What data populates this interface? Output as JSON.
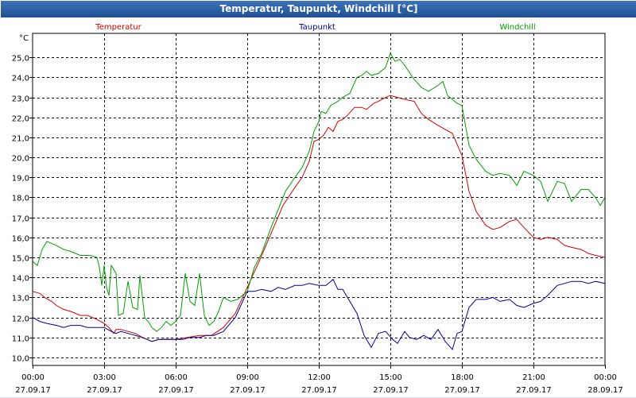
{
  "window": {
    "title": "Temperatur, Taupunkt, Windchill [°C]"
  },
  "chart_data": {
    "type": "line",
    "title": "Temperatur, Taupunkt, Windchill [°C]",
    "ylabel": "°C",
    "ylim": [
      9.6,
      26.2
    ],
    "yticks": [
      "10,0",
      "11,0",
      "12,0",
      "13,0",
      "14,0",
      "15,0",
      "16,0",
      "17,0",
      "18,0",
      "19,0",
      "20,0",
      "21,0",
      "22,0",
      "23,0",
      "24,0",
      "25,0"
    ],
    "ytick_values": [
      10,
      11,
      12,
      13,
      14,
      15,
      16,
      17,
      18,
      19,
      20,
      21,
      22,
      23,
      24,
      25
    ],
    "xlim": [
      0,
      24
    ],
    "xticks": [
      {
        "time": "00:00",
        "date": "27.09.17"
      },
      {
        "time": "03:00",
        "date": "27.09.17"
      },
      {
        "time": "06:00",
        "date": "27.09.17"
      },
      {
        "time": "09:00",
        "date": "27.09.17"
      },
      {
        "time": "12:00",
        "date": "27.09.17"
      },
      {
        "time": "15:00",
        "date": "27.09.17"
      },
      {
        "time": "18:00",
        "date": "27.09.17"
      },
      {
        "time": "21:00",
        "date": "27.09.17"
      },
      {
        "time": "00:00",
        "date": "28.09.17"
      }
    ],
    "grid": true,
    "legend_position": "top",
    "series": [
      {
        "name": "Temperatur",
        "color": "#d40000",
        "points": [
          [
            0,
            13.3
          ],
          [
            0.3,
            13.2
          ],
          [
            0.5,
            13.0
          ],
          [
            0.8,
            12.8
          ],
          [
            1.0,
            12.6
          ],
          [
            1.3,
            12.4
          ],
          [
            1.6,
            12.3
          ],
          [
            2.0,
            12.1
          ],
          [
            2.3,
            12.1
          ],
          [
            2.7,
            11.9
          ],
          [
            3.0,
            11.7
          ],
          [
            3.2,
            11.5
          ],
          [
            3.4,
            11.2
          ],
          [
            3.5,
            11.4
          ],
          [
            3.7,
            11.4
          ],
          [
            4.0,
            11.3
          ],
          [
            4.3,
            11.2
          ],
          [
            4.6,
            11.0
          ],
          [
            5.0,
            10.8
          ],
          [
            5.3,
            10.9
          ],
          [
            5.6,
            10.9
          ],
          [
            6.0,
            10.9
          ],
          [
            6.5,
            11.0
          ],
          [
            7.0,
            11.1
          ],
          [
            7.5,
            11.1
          ],
          [
            8.0,
            11.5
          ],
          [
            8.5,
            12.2
          ],
          [
            9.0,
            13.5
          ],
          [
            9.5,
            14.8
          ],
          [
            10.0,
            16.2
          ],
          [
            10.5,
            17.6
          ],
          [
            11.0,
            18.5
          ],
          [
            11.3,
            19.0
          ],
          [
            11.6,
            19.8
          ],
          [
            11.8,
            20.8
          ],
          [
            12.0,
            20.9
          ],
          [
            12.2,
            21.1
          ],
          [
            12.4,
            21.5
          ],
          [
            12.6,
            21.3
          ],
          [
            12.8,
            21.8
          ],
          [
            13.0,
            21.9
          ],
          [
            13.2,
            22.1
          ],
          [
            13.5,
            22.5
          ],
          [
            13.8,
            22.5
          ],
          [
            14.0,
            22.4
          ],
          [
            14.3,
            22.7
          ],
          [
            14.5,
            22.8
          ],
          [
            14.8,
            23.0
          ],
          [
            15.0,
            23.1
          ],
          [
            15.3,
            23.0
          ],
          [
            15.6,
            22.9
          ],
          [
            16.0,
            22.8
          ],
          [
            16.3,
            22.2
          ],
          [
            16.6,
            21.9
          ],
          [
            17.0,
            21.6
          ],
          [
            17.3,
            21.4
          ],
          [
            17.6,
            21.2
          ],
          [
            18.0,
            20.1
          ],
          [
            18.3,
            18.3
          ],
          [
            18.6,
            17.3
          ],
          [
            19.0,
            16.6
          ],
          [
            19.3,
            16.4
          ],
          [
            19.6,
            16.5
          ],
          [
            20.0,
            16.8
          ],
          [
            20.3,
            16.9
          ],
          [
            20.6,
            16.5
          ],
          [
            21.0,
            16.0
          ],
          [
            21.3,
            15.9
          ],
          [
            21.6,
            16.0
          ],
          [
            22.0,
            15.9
          ],
          [
            22.3,
            15.6
          ],
          [
            22.6,
            15.5
          ],
          [
            23.0,
            15.4
          ],
          [
            23.3,
            15.2
          ],
          [
            23.6,
            15.1
          ],
          [
            24.0,
            15.0
          ]
        ]
      },
      {
        "name": "Taupunkt",
        "color": "#00009c",
        "points": [
          [
            0,
            12.0
          ],
          [
            0.3,
            11.8
          ],
          [
            0.6,
            11.7
          ],
          [
            1.0,
            11.6
          ],
          [
            1.3,
            11.5
          ],
          [
            1.6,
            11.6
          ],
          [
            2.0,
            11.6
          ],
          [
            2.3,
            11.5
          ],
          [
            2.7,
            11.5
          ],
          [
            3.0,
            11.5
          ],
          [
            3.3,
            11.3
          ],
          [
            3.5,
            11.2
          ],
          [
            3.7,
            11.3
          ],
          [
            4.0,
            11.2
          ],
          [
            4.3,
            11.1
          ],
          [
            4.6,
            11.0
          ],
          [
            5.0,
            10.8
          ],
          [
            5.3,
            10.9
          ],
          [
            5.6,
            10.9
          ],
          [
            6.0,
            10.9
          ],
          [
            6.3,
            10.9
          ],
          [
            6.6,
            11.0
          ],
          [
            7.0,
            11.0
          ],
          [
            7.3,
            11.1
          ],
          [
            7.6,
            11.1
          ],
          [
            8.0,
            11.3
          ],
          [
            8.5,
            12.0
          ],
          [
            9.0,
            13.3
          ],
          [
            9.3,
            13.3
          ],
          [
            9.6,
            13.4
          ],
          [
            10.0,
            13.3
          ],
          [
            10.3,
            13.5
          ],
          [
            10.6,
            13.4
          ],
          [
            11.0,
            13.6
          ],
          [
            11.3,
            13.6
          ],
          [
            11.6,
            13.7
          ],
          [
            12.0,
            13.6
          ],
          [
            12.3,
            13.6
          ],
          [
            12.6,
            13.9
          ],
          [
            12.8,
            13.4
          ],
          [
            13.0,
            13.4
          ],
          [
            13.3,
            12.8
          ],
          [
            13.6,
            12.2
          ],
          [
            13.9,
            11.1
          ],
          [
            14.2,
            10.5
          ],
          [
            14.5,
            11.2
          ],
          [
            14.8,
            11.3
          ],
          [
            15.1,
            10.9
          ],
          [
            15.3,
            10.7
          ],
          [
            15.6,
            11.3
          ],
          [
            15.8,
            11.0
          ],
          [
            16.1,
            10.9
          ],
          [
            16.4,
            11.1
          ],
          [
            16.7,
            10.9
          ],
          [
            17.0,
            11.4
          ],
          [
            17.3,
            10.8
          ],
          [
            17.6,
            10.4
          ],
          [
            17.8,
            11.2
          ],
          [
            18.0,
            11.3
          ],
          [
            18.3,
            12.5
          ],
          [
            18.6,
            12.9
          ],
          [
            19.0,
            12.9
          ],
          [
            19.3,
            13.0
          ],
          [
            19.6,
            12.8
          ],
          [
            20.0,
            12.9
          ],
          [
            20.3,
            12.6
          ],
          [
            20.6,
            12.5
          ],
          [
            21.0,
            12.7
          ],
          [
            21.3,
            12.8
          ],
          [
            21.6,
            13.1
          ],
          [
            22.0,
            13.6
          ],
          [
            22.3,
            13.7
          ],
          [
            22.6,
            13.8
          ],
          [
            23.0,
            13.8
          ],
          [
            23.3,
            13.7
          ],
          [
            23.6,
            13.8
          ],
          [
            24.0,
            13.7
          ]
        ]
      },
      {
        "name": "Windchill",
        "color": "#00a000",
        "points": [
          [
            0,
            14.8
          ],
          [
            0.2,
            14.6
          ],
          [
            0.4,
            15.4
          ],
          [
            0.6,
            15.8
          ],
          [
            0.8,
            15.7
          ],
          [
            1.0,
            15.6
          ],
          [
            1.3,
            15.4
          ],
          [
            1.6,
            15.3
          ],
          [
            2.0,
            15.1
          ],
          [
            2.4,
            15.1
          ],
          [
            2.7,
            15.0
          ],
          [
            2.8,
            14.5
          ],
          [
            2.9,
            13.6
          ],
          [
            3.0,
            14.6
          ],
          [
            3.1,
            13.5
          ],
          [
            3.2,
            13.1
          ],
          [
            3.3,
            14.6
          ],
          [
            3.5,
            14.2
          ],
          [
            3.6,
            12.1
          ],
          [
            3.8,
            12.2
          ],
          [
            4.0,
            13.8
          ],
          [
            4.2,
            12.5
          ],
          [
            4.4,
            12.4
          ],
          [
            4.5,
            14.1
          ],
          [
            4.7,
            12.0
          ],
          [
            4.9,
            11.7
          ],
          [
            5.0,
            11.5
          ],
          [
            5.2,
            11.3
          ],
          [
            5.4,
            11.5
          ],
          [
            5.6,
            11.8
          ],
          [
            5.8,
            11.6
          ],
          [
            6.0,
            11.8
          ],
          [
            6.2,
            12.1
          ],
          [
            6.4,
            14.2
          ],
          [
            6.6,
            12.8
          ],
          [
            6.8,
            12.6
          ],
          [
            7.0,
            14.2
          ],
          [
            7.2,
            12.1
          ],
          [
            7.4,
            11.6
          ],
          [
            7.6,
            11.8
          ],
          [
            7.8,
            12.3
          ],
          [
            8.0,
            13.0
          ],
          [
            8.3,
            12.8
          ],
          [
            8.6,
            12.9
          ],
          [
            9.0,
            13.3
          ],
          [
            9.3,
            14.5
          ],
          [
            9.6,
            15.2
          ],
          [
            10.0,
            16.5
          ],
          [
            10.3,
            17.4
          ],
          [
            10.6,
            18.3
          ],
          [
            11.0,
            19.0
          ],
          [
            11.3,
            19.5
          ],
          [
            11.6,
            20.3
          ],
          [
            11.8,
            21.3
          ],
          [
            12.0,
            21.8
          ],
          [
            12.1,
            22.3
          ],
          [
            12.3,
            22.2
          ],
          [
            12.5,
            22.6
          ],
          [
            12.8,
            22.8
          ],
          [
            13.0,
            23.0
          ],
          [
            13.3,
            23.2
          ],
          [
            13.6,
            24.0
          ],
          [
            13.8,
            24.1
          ],
          [
            14.0,
            24.3
          ],
          [
            14.2,
            24.1
          ],
          [
            14.5,
            24.2
          ],
          [
            14.8,
            24.5
          ],
          [
            15.0,
            25.2
          ],
          [
            15.2,
            24.8
          ],
          [
            15.4,
            24.9
          ],
          [
            15.6,
            24.6
          ],
          [
            16.0,
            23.9
          ],
          [
            16.3,
            23.5
          ],
          [
            16.6,
            23.3
          ],
          [
            17.0,
            23.6
          ],
          [
            17.2,
            23.8
          ],
          [
            17.4,
            23.1
          ],
          [
            17.6,
            22.9
          ],
          [
            17.8,
            22.7
          ],
          [
            18.0,
            22.6
          ],
          [
            18.3,
            20.6
          ],
          [
            18.6,
            19.9
          ],
          [
            19.0,
            19.3
          ],
          [
            19.3,
            19.1
          ],
          [
            19.6,
            19.2
          ],
          [
            20.0,
            19.1
          ],
          [
            20.3,
            18.6
          ],
          [
            20.6,
            19.3
          ],
          [
            21.0,
            19.1
          ],
          [
            21.3,
            18.8
          ],
          [
            21.6,
            17.8
          ],
          [
            22.0,
            18.8
          ],
          [
            22.3,
            18.7
          ],
          [
            22.6,
            17.8
          ],
          [
            23.0,
            18.4
          ],
          [
            23.3,
            18.4
          ],
          [
            23.6,
            18.0
          ],
          [
            23.8,
            17.6
          ],
          [
            24.0,
            18.0
          ]
        ]
      }
    ]
  }
}
